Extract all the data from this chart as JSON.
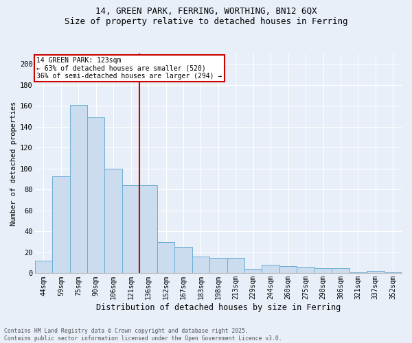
{
  "title1": "14, GREEN PARK, FERRING, WORTHING, BN12 6QX",
  "title2": "Size of property relative to detached houses in Ferring",
  "xlabel": "Distribution of detached houses by size in Ferring",
  "ylabel": "Number of detached properties",
  "categories": [
    "44sqm",
    "59sqm",
    "75sqm",
    "90sqm",
    "106sqm",
    "121sqm",
    "136sqm",
    "152sqm",
    "167sqm",
    "183sqm",
    "198sqm",
    "213sqm",
    "229sqm",
    "244sqm",
    "260sqm",
    "275sqm",
    "290sqm",
    "306sqm",
    "321sqm",
    "337sqm",
    "352sqm"
  ],
  "values": [
    12,
    93,
    161,
    149,
    100,
    84,
    84,
    30,
    25,
    16,
    15,
    15,
    4,
    8,
    7,
    6,
    5,
    5,
    1,
    2,
    1
  ],
  "bar_color": "#ccdcef",
  "bar_edge_color": "#6baed6",
  "vline_x_idx": 5,
  "annotation_title": "14 GREEN PARK: 123sqm",
  "annotation_line1": "← 63% of detached houses are smaller (520)",
  "annotation_line2": "36% of semi-detached houses are larger (294) →",
  "annotation_box_facecolor": "#ffffff",
  "annotation_box_edgecolor": "#cc0000",
  "vline_color": "#cc0000",
  "ylim_max": 210,
  "yticks": [
    0,
    20,
    40,
    60,
    80,
    100,
    120,
    140,
    160,
    180,
    200
  ],
  "footer1": "Contains HM Land Registry data © Crown copyright and database right 2025.",
  "footer2": "Contains public sector information licensed under the Open Government Licence v3.0.",
  "bg_color": "#e8eff8",
  "grid_color": "#ffffff"
}
